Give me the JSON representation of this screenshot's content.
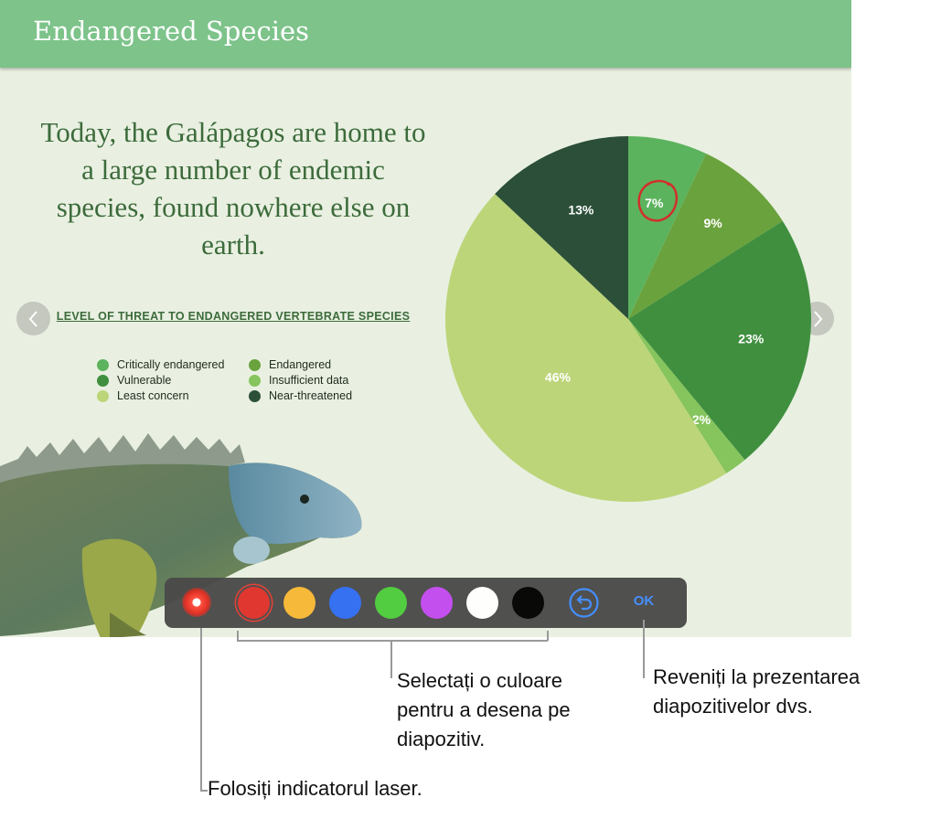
{
  "slide": {
    "title": "Endangered Species",
    "headline": "Today, the Galápagos are home to a large number of endemic species, found nowhere else on earth.",
    "chart_heading": "LEVEL OF THREAT TO ENDANGERED VERTEBRATE SPECIES",
    "accent_color": "#7dc38a",
    "background_color": "#e9f0e1"
  },
  "chart_data": {
    "type": "pie",
    "title": "LEVEL OF THREAT TO ENDANGERED VERTEBRATE SPECIES",
    "legend_position": "left",
    "slices": [
      {
        "name": "Critically endangered",
        "value": 7,
        "label": "7%",
        "color": "#5cb35e",
        "annotated": true
      },
      {
        "name": "Endangered",
        "value": 9,
        "label": "9%",
        "color": "#6aa23d"
      },
      {
        "name": "Vulnerable",
        "value": 23,
        "label": "23%",
        "color": "#3f8f3f"
      },
      {
        "name": "Insufficient data",
        "value": 2,
        "label": "2%",
        "color": "#86c45d"
      },
      {
        "name": "Least concern",
        "value": 46,
        "label": "46%",
        "color": "#bcd579"
      },
      {
        "name": "Near-threatened",
        "value": 13,
        "label": "13%",
        "color": "#2b4f38"
      }
    ],
    "legend": [
      {
        "name": "Critically endangered",
        "color": "#5cb35e"
      },
      {
        "name": "Endangered",
        "color": "#6aa23d"
      },
      {
        "name": "Vulnerable",
        "color": "#3f8f3f"
      },
      {
        "name": "Insufficient data",
        "color": "#86c45d"
      },
      {
        "name": "Least concern",
        "color": "#bcd579"
      },
      {
        "name": "Near-threatened",
        "color": "#2b4f38"
      }
    ],
    "annotation_color": "#d0302a"
  },
  "navigation": {
    "prev_icon": "chevron-left-icon",
    "next_icon": "chevron-right-icon"
  },
  "toolbar": {
    "laser_icon": "laser-pointer-icon",
    "colors": [
      {
        "name": "red",
        "hex": "#e0302a",
        "selected": true
      },
      {
        "name": "yellow",
        "hex": "#f7b733"
      },
      {
        "name": "blue",
        "hex": "#2f6cf3"
      },
      {
        "name": "green",
        "hex": "#4ccb3a"
      },
      {
        "name": "purple",
        "hex": "#c349f0"
      },
      {
        "name": "white",
        "hex": "#ffffff"
      },
      {
        "name": "black",
        "hex": "#000000"
      }
    ],
    "undo_icon": "undo-icon",
    "ok_label": "OK"
  },
  "callouts": {
    "colors": "Selectați o culoare\npentru a desena pe\ndiapozitiv.",
    "return": "Reveniți la prezentarea\ndiapozitivelor dvs.",
    "laser": "Folosiți indicatorul laser."
  }
}
